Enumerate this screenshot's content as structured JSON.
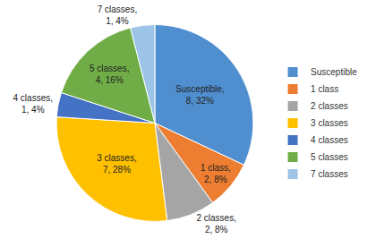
{
  "chart_data": {
    "type": "pie",
    "categories": [
      "Susceptible",
      "1 class",
      "2 classes",
      "3 classes",
      "4 classes",
      "5 classes",
      "7 classes"
    ],
    "values": [
      8,
      2,
      2,
      7,
      1,
      4,
      1
    ],
    "value_labels": [
      "Susceptible, 8, 32%",
      "1 class, 2, 8%",
      "2 classes, 2, 8%",
      "3 classes, 7, 28%",
      "4 classes, 1, 4%",
      "5 classes, 4, 16%",
      "7 classes, 1, 4%"
    ],
    "colors": [
      "#4f8fcf",
      "#ed7d31",
      "#a5a5a5",
      "#ffc000",
      "#4472c4",
      "#70ad47",
      "#9dc3e6"
    ],
    "data_labels": true,
    "legend": "right"
  }
}
